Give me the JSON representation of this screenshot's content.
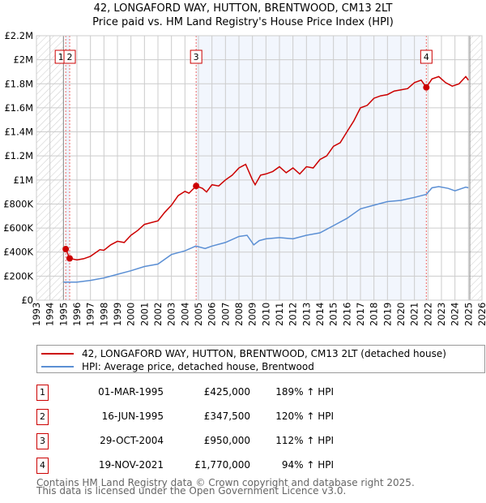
{
  "chart_data": {
    "type": "line",
    "title": "42, LONGAFORD WAY, HUTTON, BRENTWOOD, CM13 2LT",
    "subtitle": "Price paid vs. HM Land Registry's House Price Index (HPI)",
    "xlim": [
      1993,
      2026
    ],
    "ylim": [
      0,
      2200000
    ],
    "x_ticks": [
      "1993",
      "1994",
      "1995",
      "1996",
      "1997",
      "1998",
      "1999",
      "2000",
      "2001",
      "2002",
      "2003",
      "2004",
      "2005",
      "2006",
      "2007",
      "2008",
      "2009",
      "2010",
      "2011",
      "2012",
      "2013",
      "2014",
      "2015",
      "2016",
      "2017",
      "2018",
      "2019",
      "2020",
      "2021",
      "2022",
      "2023",
      "2024",
      "2025",
      "2026"
    ],
    "y_ticks": [
      {
        "v": 0,
        "label": "£0"
      },
      {
        "v": 200000,
        "label": "£200K"
      },
      {
        "v": 400000,
        "label": "£400K"
      },
      {
        "v": 600000,
        "label": "£600K"
      },
      {
        "v": 800000,
        "label": "£800K"
      },
      {
        "v": 1000000,
        "label": "£1M"
      },
      {
        "v": 1200000,
        "label": "£1.2M"
      },
      {
        "v": 1400000,
        "label": "£1.4M"
      },
      {
        "v": 1600000,
        "label": "£1.6M"
      },
      {
        "v": 1800000,
        "label": "£1.8M"
      },
      {
        "v": 2000000,
        "label": "£2M"
      },
      {
        "v": 2200000,
        "label": "£2.2M"
      }
    ],
    "grid": true,
    "series": [
      {
        "name": "42, LONGAFORD WAY, HUTTON, BRENTWOOD, CM13 2LT (detached house)",
        "color": "#cc0000",
        "x": [
          1995.17,
          1995.46,
          1996,
          1996.5,
          1997,
          1997.7,
          1998,
          1998.5,
          1999,
          1999.5,
          2000,
          2000.5,
          2001,
          2001.5,
          2002,
          2002.5,
          2003,
          2003.5,
          2004,
          2004.3,
          2004.83,
          2005.3,
          2005.6,
          2006,
          2006.5,
          2007,
          2007.5,
          2008,
          2008.5,
          2009,
          2009.2,
          2009.6,
          2010,
          2010.5,
          2011,
          2011.5,
          2012,
          2012.5,
          2013,
          2013.5,
          2014,
          2014.5,
          2015,
          2015.5,
          2016,
          2016.5,
          2017,
          2017.5,
          2018,
          2018.5,
          2019,
          2019.5,
          2020,
          2020.5,
          2021,
          2021.5,
          2021.88,
          2022.3,
          2022.8,
          2023.3,
          2023.8,
          2024.3,
          2024.8,
          2025
        ],
        "y": [
          425000,
          347500,
          335000,
          345000,
          365000,
          420000,
          415000,
          460000,
          490000,
          480000,
          540000,
          580000,
          630000,
          645000,
          660000,
          730000,
          790000,
          870000,
          905000,
          890000,
          950000,
          930000,
          900000,
          960000,
          950000,
          1000000,
          1040000,
          1100000,
          1130000,
          1000000,
          960000,
          1040000,
          1050000,
          1070000,
          1110000,
          1060000,
          1100000,
          1050000,
          1110000,
          1100000,
          1170000,
          1200000,
          1280000,
          1310000,
          1400000,
          1490000,
          1600000,
          1620000,
          1680000,
          1700000,
          1710000,
          1740000,
          1750000,
          1760000,
          1810000,
          1830000,
          1770000,
          1840000,
          1860000,
          1810000,
          1780000,
          1800000,
          1860000,
          1830000
        ]
      },
      {
        "name": "HPI: Average price, detached house, Brentwood",
        "color": "#5b8fd4",
        "x": [
          1995,
          1996,
          1997,
          1998,
          1999,
          2000,
          2001,
          2002,
          2003,
          2004,
          2004.8,
          2005.5,
          2006,
          2007,
          2008,
          2008.6,
          2009.1,
          2009.5,
          2010,
          2011,
          2012,
          2013,
          2014,
          2015,
          2016,
          2017,
          2018,
          2019,
          2020,
          2021,
          2021.88,
          2022.3,
          2022.8,
          2023.5,
          2024,
          2024.8,
          2025
        ],
        "y": [
          150000,
          150000,
          165000,
          185000,
          215000,
          245000,
          280000,
          300000,
          380000,
          410000,
          450000,
          430000,
          450000,
          480000,
          530000,
          540000,
          460000,
          495000,
          510000,
          520000,
          510000,
          540000,
          560000,
          620000,
          680000,
          760000,
          790000,
          820000,
          830000,
          855000,
          880000,
          935000,
          945000,
          930000,
          910000,
          940000,
          935000
        ]
      }
    ],
    "sales": [
      {
        "n": "1",
        "x": 1995.17,
        "y": 425000,
        "date": "01-MAR-1995",
        "price": "£425,000",
        "hpi": "189% ↑ HPI"
      },
      {
        "n": "2",
        "x": 1995.46,
        "y": 347500,
        "date": "16-JUN-1995",
        "price": "£347,500",
        "hpi": "120% ↑ HPI"
      },
      {
        "n": "3",
        "x": 2004.83,
        "y": 950000,
        "date": "29-OCT-2004",
        "price": "£950,000",
        "hpi": "112% ↑ HPI"
      },
      {
        "n": "4",
        "x": 2021.88,
        "y": 1770000,
        "date": "19-NOV-2021",
        "price": "£1,770,000",
        "hpi": "94% ↑ HPI"
      }
    ],
    "data_range": [
      1995,
      2025.1
    ]
  },
  "legend": {
    "red": "42, LONGAFORD WAY, HUTTON, BRENTWOOD, CM13 2LT (detached house)",
    "blue": "HPI: Average price, detached house, Brentwood"
  },
  "footer": {
    "line1": "Contains HM Land Registry data © Crown copyright and database right 2025.",
    "line2": "This data is licensed under the Open Government Licence v3.0."
  }
}
